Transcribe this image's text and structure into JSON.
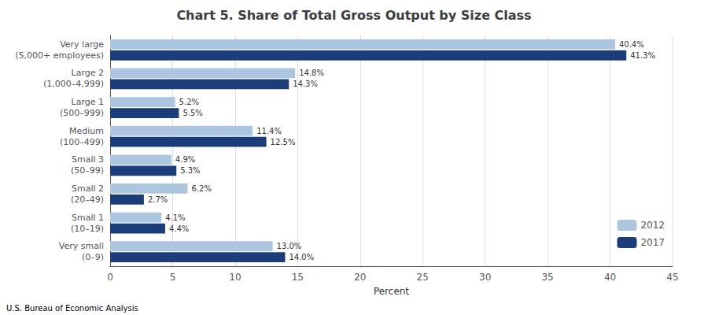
{
  "chart_data": {
    "type": "bar",
    "orientation": "horizontal",
    "title": "Chart 5. Share of Total Gross Output by Size Class",
    "categories": [
      "Very small\n(0–9)",
      "Small 1\n(10–19)",
      "Small 2\n(20–49)",
      "Small 3\n(50–99)",
      "Medium\n(100–499)",
      "Large 1\n(500–999)",
      "Large 2\n(1,000–4,999)",
      "Very large\n(5,000+ employees)"
    ],
    "series": [
      {
        "name": "2012",
        "color": "#adc6e0",
        "values": [
          13.0,
          4.1,
          6.2,
          4.9,
          11.4,
          5.2,
          14.8,
          40.4
        ],
        "value_labels": [
          "13.0%",
          "4.1%",
          "6.2%",
          "4.9%",
          "11.4%",
          "5.2%",
          "14.8%",
          "40.4%"
        ]
      },
      {
        "name": "2017",
        "color": "#1b3d7a",
        "values": [
          14.0,
          4.4,
          2.7,
          5.3,
          12.5,
          5.5,
          14.3,
          41.3
        ],
        "value_labels": [
          "14.0%",
          "4.4%",
          "2.7%",
          "5.3%",
          "12.5%",
          "5.5%",
          "14.3%",
          "41.3%"
        ]
      }
    ],
    "xlabel": "Percent",
    "xlim": [
      0,
      45
    ],
    "xticks": [
      0,
      5,
      10,
      15,
      20,
      25,
      30,
      35,
      40,
      45
    ],
    "grid": true,
    "legend": "lower right",
    "data_labels": true,
    "annotations": [
      "U.S. Bureau of Economic Analysis"
    ]
  }
}
